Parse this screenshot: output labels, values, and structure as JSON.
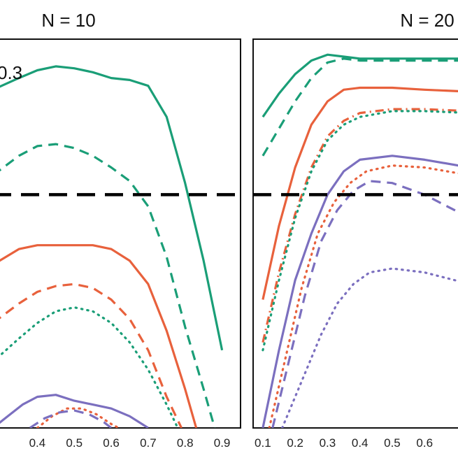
{
  "chart_data": [
    {
      "type": "line",
      "title": "N = 10",
      "annotation": "0.3",
      "xlim": [
        0.28,
        0.95
      ],
      "ylim": [
        0,
        1
      ],
      "x_ticks": [
        "0.4",
        "0.5",
        "0.6",
        "0.7",
        "0.8",
        "0.9"
      ],
      "reference_line": 0.6,
      "series": [
        {
          "color": "#1a9e77",
          "dash": "solid",
          "points": [
            [
              0.28,
              0.87
            ],
            [
              0.35,
              0.9
            ],
            [
              0.4,
              0.92
            ],
            [
              0.45,
              0.93
            ],
            [
              0.5,
              0.925
            ],
            [
              0.55,
              0.915
            ],
            [
              0.6,
              0.9
            ],
            [
              0.65,
              0.895
            ],
            [
              0.7,
              0.88
            ],
            [
              0.75,
              0.8
            ],
            [
              0.8,
              0.63
            ],
            [
              0.85,
              0.43
            ],
            [
              0.9,
              0.2
            ]
          ]
        },
        {
          "color": "#1a9e77",
          "dash": "dashed",
          "points": [
            [
              0.28,
              0.65
            ],
            [
              0.35,
              0.7
            ],
            [
              0.4,
              0.725
            ],
            [
              0.45,
              0.73
            ],
            [
              0.5,
              0.72
            ],
            [
              0.55,
              0.7
            ],
            [
              0.6,
              0.67
            ],
            [
              0.65,
              0.635
            ],
            [
              0.7,
              0.57
            ],
            [
              0.75,
              0.44
            ],
            [
              0.8,
              0.26
            ],
            [
              0.85,
              0.1
            ],
            [
              0.88,
              0.0
            ]
          ]
        },
        {
          "color": "#e8613c",
          "dash": "solid",
          "points": [
            [
              0.28,
              0.42
            ],
            [
              0.35,
              0.46
            ],
            [
              0.4,
              0.47
            ],
            [
              0.45,
              0.47
            ],
            [
              0.5,
              0.47
            ],
            [
              0.55,
              0.47
            ],
            [
              0.6,
              0.46
            ],
            [
              0.65,
              0.43
            ],
            [
              0.7,
              0.37
            ],
            [
              0.75,
              0.25
            ],
            [
              0.8,
              0.1
            ],
            [
              0.83,
              0.0
            ]
          ]
        },
        {
          "color": "#e8613c",
          "dash": "dashed",
          "points": [
            [
              0.28,
              0.27
            ],
            [
              0.35,
              0.32
            ],
            [
              0.4,
              0.35
            ],
            [
              0.45,
              0.365
            ],
            [
              0.5,
              0.37
            ],
            [
              0.55,
              0.36
            ],
            [
              0.6,
              0.33
            ],
            [
              0.65,
              0.28
            ],
            [
              0.7,
              0.2
            ],
            [
              0.75,
              0.08
            ],
            [
              0.79,
              0.0
            ]
          ]
        },
        {
          "color": "#1a9e77",
          "dash": "dotted",
          "points": [
            [
              0.28,
              0.17
            ],
            [
              0.35,
              0.23
            ],
            [
              0.4,
              0.27
            ],
            [
              0.45,
              0.3
            ],
            [
              0.5,
              0.31
            ],
            [
              0.55,
              0.3
            ],
            [
              0.6,
              0.27
            ],
            [
              0.65,
              0.22
            ],
            [
              0.7,
              0.15
            ],
            [
              0.75,
              0.06
            ],
            [
              0.78,
              0.0
            ]
          ]
        },
        {
          "color": "#7b6fbf",
          "dash": "solid",
          "points": [
            [
              0.28,
              0.0
            ],
            [
              0.32,
              0.03
            ],
            [
              0.36,
              0.06
            ],
            [
              0.4,
              0.08
            ],
            [
              0.45,
              0.085
            ],
            [
              0.5,
              0.07
            ],
            [
              0.55,
              0.06
            ],
            [
              0.6,
              0.05
            ],
            [
              0.65,
              0.03
            ],
            [
              0.7,
              0.0
            ]
          ]
        },
        {
          "color": "#e8613c",
          "dash": "dotted",
          "points": [
            [
              0.4,
              0.0
            ],
            [
              0.44,
              0.03
            ],
            [
              0.48,
              0.05
            ],
            [
              0.52,
              0.05
            ],
            [
              0.56,
              0.035
            ],
            [
              0.6,
              0.01
            ],
            [
              0.62,
              0.0
            ]
          ]
        },
        {
          "color": "#7b6fbf",
          "dash": "dashed",
          "points": [
            [
              0.38,
              0.0
            ],
            [
              0.42,
              0.025
            ],
            [
              0.46,
              0.04
            ],
            [
              0.5,
              0.045
            ],
            [
              0.54,
              0.035
            ],
            [
              0.58,
              0.015
            ],
            [
              0.6,
              0.0
            ]
          ]
        }
      ]
    },
    {
      "type": "line",
      "title": "N = 20",
      "xlim": [
        0.07,
        0.74
      ],
      "ylim": [
        0,
        1
      ],
      "x_ticks": [
        "0.1",
        "0.2",
        "0.3",
        "0.4",
        "0.5",
        "0.6"
      ],
      "reference_line": 0.6,
      "series": [
        {
          "color": "#1a9e77",
          "dash": "solid",
          "points": [
            [
              0.1,
              0.8
            ],
            [
              0.15,
              0.86
            ],
            [
              0.2,
              0.91
            ],
            [
              0.25,
              0.945
            ],
            [
              0.3,
              0.96
            ],
            [
              0.35,
              0.955
            ],
            [
              0.4,
              0.95
            ],
            [
              0.5,
              0.95
            ],
            [
              0.6,
              0.95
            ],
            [
              0.74,
              0.95
            ]
          ]
        },
        {
          "color": "#1a9e77",
          "dash": "dashed",
          "points": [
            [
              0.1,
              0.7
            ],
            [
              0.15,
              0.77
            ],
            [
              0.2,
              0.84
            ],
            [
              0.25,
              0.9
            ],
            [
              0.3,
              0.94
            ],
            [
              0.35,
              0.95
            ],
            [
              0.4,
              0.945
            ],
            [
              0.5,
              0.945
            ],
            [
              0.6,
              0.945
            ],
            [
              0.74,
              0.945
            ]
          ]
        },
        {
          "color": "#e8613c",
          "dash": "solid",
          "points": [
            [
              0.1,
              0.33
            ],
            [
              0.15,
              0.52
            ],
            [
              0.2,
              0.67
            ],
            [
              0.25,
              0.78
            ],
            [
              0.3,
              0.84
            ],
            [
              0.35,
              0.87
            ],
            [
              0.4,
              0.875
            ],
            [
              0.5,
              0.875
            ],
            [
              0.6,
              0.87
            ],
            [
              0.74,
              0.865
            ]
          ]
        },
        {
          "color": "#e8613c",
          "dash": "dashdot",
          "points": [
            [
              0.1,
              0.22
            ],
            [
              0.15,
              0.4
            ],
            [
              0.2,
              0.55
            ],
            [
              0.25,
              0.67
            ],
            [
              0.3,
              0.75
            ],
            [
              0.35,
              0.79
            ],
            [
              0.4,
              0.81
            ],
            [
              0.5,
              0.82
            ],
            [
              0.6,
              0.82
            ],
            [
              0.74,
              0.815
            ]
          ]
        },
        {
          "color": "#1a9e77",
          "dash": "dotted",
          "points": [
            [
              0.1,
              0.2
            ],
            [
              0.15,
              0.38
            ],
            [
              0.2,
              0.54
            ],
            [
              0.25,
              0.66
            ],
            [
              0.3,
              0.74
            ],
            [
              0.35,
              0.78
            ],
            [
              0.4,
              0.8
            ],
            [
              0.5,
              0.815
            ],
            [
              0.6,
              0.815
            ],
            [
              0.74,
              0.81
            ]
          ]
        },
        {
          "color": "#7b6fbf",
          "dash": "solid",
          "points": [
            [
              0.1,
              0.0
            ],
            [
              0.15,
              0.2
            ],
            [
              0.2,
              0.38
            ],
            [
              0.25,
              0.5
            ],
            [
              0.3,
              0.6
            ],
            [
              0.35,
              0.66
            ],
            [
              0.4,
              0.69
            ],
            [
              0.5,
              0.7
            ],
            [
              0.6,
              0.69
            ],
            [
              0.74,
              0.67
            ]
          ]
        },
        {
          "color": "#e8613c",
          "dotted_alt": true,
          "dash": "dotted",
          "points": [
            [
              0.12,
              0.0
            ],
            [
              0.17,
              0.18
            ],
            [
              0.22,
              0.36
            ],
            [
              0.27,
              0.5
            ],
            [
              0.32,
              0.58
            ],
            [
              0.37,
              0.63
            ],
            [
              0.42,
              0.66
            ],
            [
              0.5,
              0.675
            ],
            [
              0.6,
              0.67
            ],
            [
              0.74,
              0.65
            ]
          ]
        },
        {
          "color": "#7b6fbf",
          "dash": "dashed",
          "points": [
            [
              0.13,
              0.0
            ],
            [
              0.18,
              0.17
            ],
            [
              0.23,
              0.34
            ],
            [
              0.28,
              0.48
            ],
            [
              0.33,
              0.56
            ],
            [
              0.38,
              0.61
            ],
            [
              0.43,
              0.635
            ],
            [
              0.5,
              0.63
            ],
            [
              0.6,
              0.6
            ],
            [
              0.74,
              0.54
            ]
          ]
        },
        {
          "color": "#7b6fbf",
          "dash": "dotted",
          "points": [
            [
              0.16,
              0.0
            ],
            [
              0.22,
              0.12
            ],
            [
              0.28,
              0.24
            ],
            [
              0.33,
              0.32
            ],
            [
              0.38,
              0.37
            ],
            [
              0.43,
              0.4
            ],
            [
              0.5,
              0.41
            ],
            [
              0.6,
              0.4
            ],
            [
              0.74,
              0.37
            ]
          ]
        }
      ]
    }
  ]
}
